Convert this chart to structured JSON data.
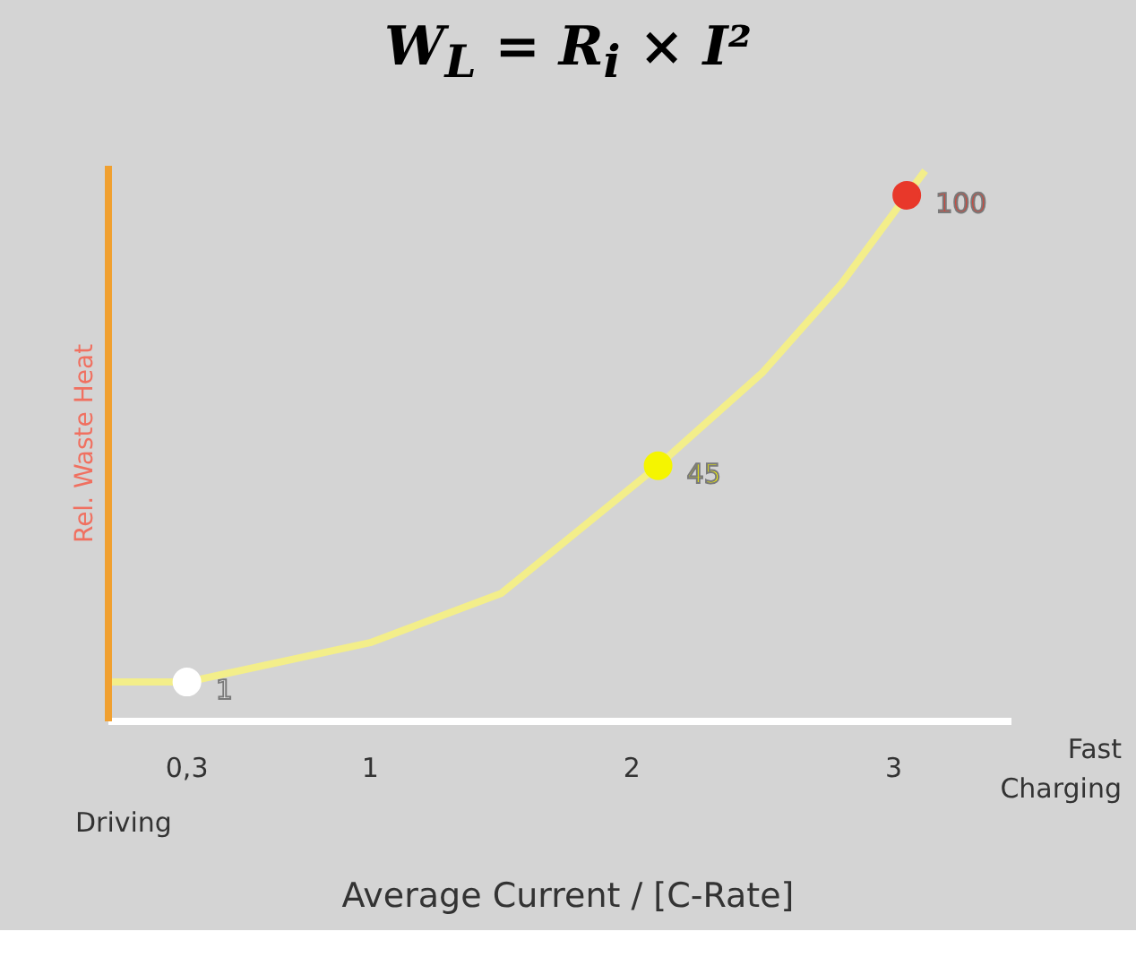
{
  "chart_data": {
    "type": "line",
    "title": "W$_{L}$ = R$_{i}$ × I²",
    "xlabel": "Average Current / [C-Rate]",
    "ylabel": "Rel. Waste Heat",
    "annotations": [
      "Driving",
      "Fast Charging"
    ],
    "xlim": [
      0,
      3.45
    ],
    "ylim": [
      -7,
      106
    ],
    "xticks": [
      {
        "value": 0.3,
        "label": "0,3"
      },
      1,
      2,
      3
    ],
    "tick_labels": "x",
    "grid": false,
    "series": [
      {
        "color": "#f3ee8a",
        "line_style": "solid",
        "marker": "none",
        "x": [
          0,
          0.3,
          1,
          1.5,
          2.1,
          2.5,
          2.8,
          3.05,
          3.12
        ],
        "values": [
          1,
          1,
          9,
          19,
          45,
          64,
          82,
          100,
          105
        ]
      },
      {
        "type": "scatter",
        "marker": "circle",
        "x": [
          0.3,
          2.1,
          3.05
        ],
        "values": [
          1,
          45,
          100
        ],
        "colors": [
          "#ffffff",
          "#f5f500",
          "#e8382a"
        ],
        "value_labels": [
          "1",
          "45",
          "100"
        ]
      }
    ]
  }
}
